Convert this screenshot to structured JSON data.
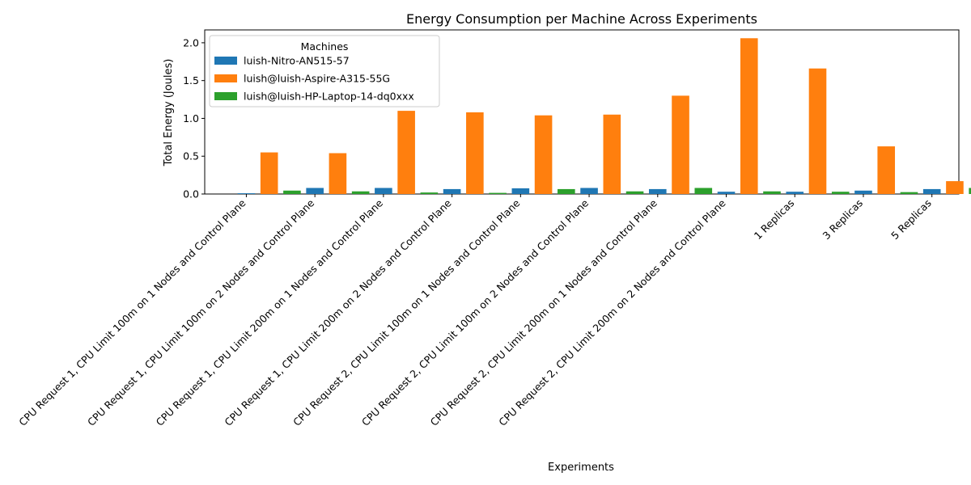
{
  "chart_data": {
    "type": "bar",
    "title": "Energy Consumption per Machine Across Experiments",
    "xlabel": "Experiments",
    "ylabel": "Total Energy (Joules)",
    "ylim": [
      0,
      2.17
    ],
    "yticks": [
      "0.0",
      "0.5",
      "1.0",
      "1.5",
      "2.0"
    ],
    "grid": false,
    "legend": {
      "title": "Machines",
      "placement": "top-left"
    },
    "categories": [
      "CPU Request 1, CPU Limit 100m on 1 Nodes and Control Plane",
      "CPU Request 1, CPU Limit 100m on 2 Nodes and Control Plane",
      "CPU Request 1, CPU Limit 200m on 1 Nodes and Control Plane",
      "CPU Request 1, CPU Limit 200m on 2 Nodes and Control Plane",
      "CPU Request 2, CPU Limit 100m on 1 Nodes and Control Plane",
      "CPU Request 2, CPU Limit 100m on 2 Nodes and Control Plane",
      "CPU Request 2, CPU Limit 200m on 1 Nodes and Control Plane",
      "CPU Request 2, CPU Limit 200m on 2 Nodes and Control Plane",
      "1 Replicas",
      "3 Replicas",
      "5 Replicas"
    ],
    "series": [
      {
        "name": "luish-Nitro-AN515-57",
        "color": "#1f77b4",
        "values": [
          0.01,
          0.08,
          0.08,
          0.065,
          0.075,
          0.08,
          0.065,
          0.03,
          0.03,
          0.045,
          0.065
        ]
      },
      {
        "name": "luish@luish-Aspire-A315-55G",
        "color": "#ff7f0e",
        "values": [
          0.55,
          0.54,
          1.1,
          1.08,
          1.04,
          1.05,
          1.3,
          2.06,
          1.66,
          0.63,
          0.17
        ]
      },
      {
        "name": "luish@luish-HP-Laptop-14-dq0xxx",
        "color": "#2ca02c",
        "values": [
          0.045,
          0.035,
          0.02,
          0.015,
          0.065,
          0.035,
          0.08,
          0.035,
          0.03,
          0.025,
          0.08
        ]
      }
    ]
  }
}
